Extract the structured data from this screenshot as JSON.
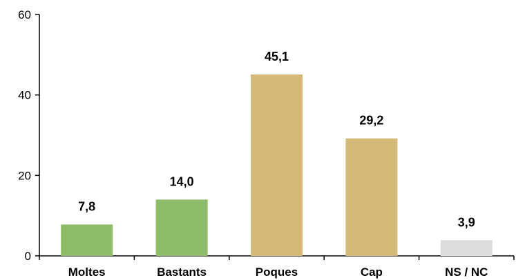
{
  "chart_data": {
    "type": "bar",
    "categories": [
      "Moltes",
      "Bastants",
      "Poques",
      "Cap",
      "NS / NC"
    ],
    "values": [
      7.8,
      14.0,
      45.1,
      29.2,
      3.9
    ],
    "value_labels": [
      "7,8",
      "14,0",
      "45,1",
      "29,2",
      "3,9"
    ],
    "bar_colors": [
      "#8fbc68",
      "#8fbc68",
      "#d4b978",
      "#d4b978",
      "#dcdcdc"
    ],
    "ylim": [
      0,
      60
    ],
    "yticks": [
      0,
      20,
      40,
      60
    ],
    "ytick_labels": [
      "0",
      "20",
      "40",
      "60"
    ],
    "title": "",
    "xlabel": "",
    "ylabel": "",
    "grid": false
  }
}
